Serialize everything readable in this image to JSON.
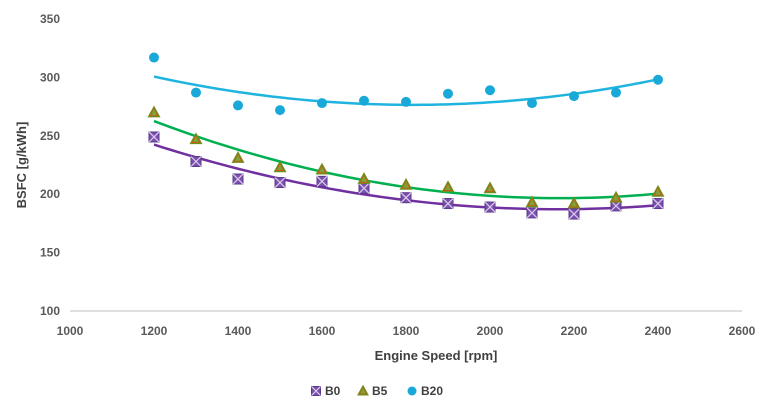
{
  "chart_data": {
    "type": "scatter",
    "xlabel": "Engine Speed [rpm]",
    "ylabel": "BSFC [g/kWh]",
    "xlim": [
      1000,
      2600
    ],
    "ylim": [
      100,
      350
    ],
    "x_ticks": [
      "1000",
      "1200",
      "1400",
      "1600",
      "1800",
      "2000",
      "2200",
      "2400",
      "2600"
    ],
    "y_ticks": [
      "100",
      "150",
      "200",
      "250",
      "300",
      "350"
    ],
    "grid": false,
    "legend_position": "bottom",
    "trendline": "polynomial-2",
    "series": [
      {
        "name": "B0",
        "marker": "square-x",
        "color": "#7b4fae",
        "line_color": "#7030a0",
        "x": [
          1200,
          1300,
          1400,
          1500,
          1600,
          1700,
          1800,
          1900,
          2000,
          2100,
          2200,
          2300,
          2400
        ],
        "y": [
          249,
          228,
          213,
          210,
          211,
          205,
          197,
          192,
          189,
          184,
          183,
          190,
          192
        ]
      },
      {
        "name": "B5",
        "marker": "triangle",
        "color": "#8a9a2a",
        "line_color": "#00b050",
        "x": [
          1200,
          1300,
          1400,
          1500,
          1600,
          1700,
          1800,
          1900,
          2000,
          2100,
          2200,
          2300,
          2400
        ],
        "y": [
          270,
          247,
          231,
          223,
          221,
          213,
          208,
          206,
          205,
          193,
          192,
          197,
          202
        ]
      },
      {
        "name": "B20",
        "marker": "circle",
        "color": "#19a9d8",
        "line_color": "#1fb4e0",
        "x": [
          1200,
          1300,
          1400,
          1500,
          1600,
          1700,
          1800,
          1900,
          2000,
          2100,
          2200,
          2300,
          2400
        ],
        "y": [
          317,
          287,
          276,
          272,
          278,
          280,
          279,
          286,
          289,
          278,
          284,
          287,
          298
        ]
      }
    ]
  }
}
